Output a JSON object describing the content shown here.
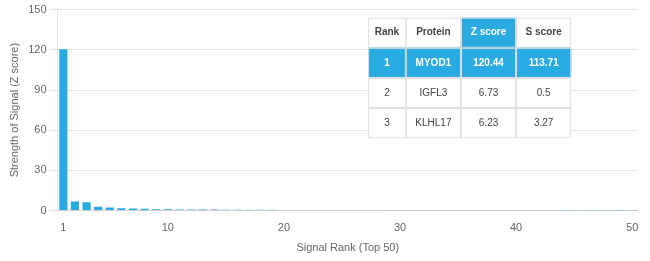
{
  "chart_data": {
    "type": "bar",
    "x": [
      1,
      2,
      3,
      4,
      5,
      6,
      7,
      8,
      9,
      10,
      11,
      12,
      13,
      14,
      15,
      16,
      17,
      18,
      19,
      20,
      21,
      22,
      23,
      24,
      25,
      26,
      27,
      28,
      29,
      30,
      31,
      32,
      33,
      34,
      35,
      36,
      37,
      38,
      39,
      40,
      41,
      42,
      43,
      44,
      45,
      46,
      47,
      48,
      49,
      50
    ],
    "values": [
      120.44,
      6.73,
      6.23,
      2.8,
      2.3,
      1.8,
      1.5,
      1.3,
      1.1,
      1.0,
      0.9,
      0.85,
      0.8,
      0.75,
      0.7,
      0.65,
      0.6,
      0.58,
      0.55,
      0.52,
      0.5,
      0.48,
      0.46,
      0.44,
      0.42,
      0.4,
      0.38,
      0.36,
      0.34,
      0.32,
      0.3,
      0.28,
      0.27,
      0.26,
      0.25,
      0.24,
      0.23,
      0.22,
      0.21,
      0.2,
      0.19,
      0.18,
      0.17,
      0.16,
      0.15,
      0.14,
      0.13,
      0.12,
      0.11,
      0.1
    ],
    "color": "#29ABE2",
    "xlabel": "Signal Rank (Top 50)",
    "ylabel": "Strength of Signal (Z score)",
    "xlim": [
      0.5,
      50.5
    ],
    "xticks": [
      1,
      10,
      20,
      30,
      40,
      50
    ],
    "ylim": [
      0,
      150
    ],
    "yticks": [
      0,
      30,
      60,
      90,
      120,
      150
    ],
    "grid": true,
    "table": {
      "columns": [
        "Rank",
        "Protein",
        "Z score",
        "S score"
      ],
      "rows": [
        [
          "1",
          "MYOD1",
          "120.44",
          "113.71"
        ],
        [
          "2",
          "IGFL3",
          "6.73",
          "0.5"
        ],
        [
          "3",
          "KLHL17",
          "6.23",
          "3.27"
        ]
      ]
    }
  }
}
